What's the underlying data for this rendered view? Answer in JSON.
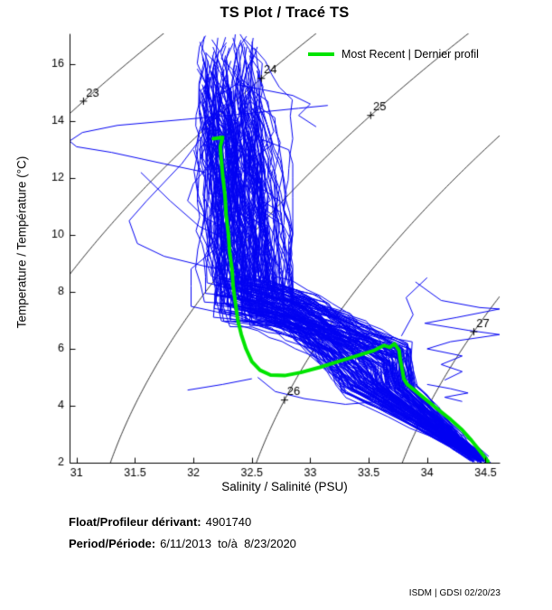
{
  "title": "TS Plot / Tracé TS",
  "legend": {
    "label": "Most Recent | Dernier profil",
    "line_color": "#00e400"
  },
  "axes": {
    "x": {
      "label": "Salinity / Salinité (PSU)"
    },
    "y": {
      "label": "Temperature / Température (°C)"
    }
  },
  "footer": {
    "float_label": "Float/Profileur dérivant:",
    "float_value": "4901740",
    "period_label": "Period/Période:",
    "period_value": "6/11/2013  to/à  8/23/2020"
  },
  "credit": "ISDM | GDSI 02/20/23",
  "chart_data": {
    "type": "line",
    "title": "TS Plot / Tracé TS",
    "xlabel": "Salinity / Salinité (PSU)",
    "ylabel": "Temperature / Température (°C)",
    "xlim": [
      30.94,
      34.62
    ],
    "ylim": [
      2,
      17.08
    ],
    "x_ticks": [
      31,
      31.5,
      32,
      32.5,
      33,
      33.5,
      34,
      34.5
    ],
    "y_ticks": [
      2,
      4,
      6,
      8,
      10,
      12,
      14,
      16
    ],
    "grid": false,
    "legend_position": "top-right-inside",
    "isopycnals": {
      "description": "sigma-t density contours (EOS-80), inline labels with + marks",
      "values": [
        23,
        24,
        25,
        26,
        27
      ],
      "label_T": {
        "23": 15.2,
        "24": 16.0,
        "25": 14.7,
        "26": 4.7,
        "27": 7.1
      },
      "color": "#000000"
    },
    "series": [
      {
        "name": "Most Recent | Dernier profil",
        "color": "#00e400",
        "line_width": 4,
        "points": [
          [
            32.17,
            13.38
          ],
          [
            32.25,
            13.43
          ],
          [
            32.23,
            13.1
          ],
          [
            32.24,
            12.6
          ],
          [
            32.25,
            12.1
          ],
          [
            32.27,
            11.4
          ],
          [
            32.28,
            10.7
          ],
          [
            32.3,
            10.0
          ],
          [
            32.31,
            9.4
          ],
          [
            32.33,
            8.8
          ],
          [
            32.34,
            8.2
          ],
          [
            32.36,
            7.6
          ],
          [
            32.38,
            7.0
          ],
          [
            32.41,
            6.5
          ],
          [
            32.45,
            6.0
          ],
          [
            32.5,
            5.55
          ],
          [
            32.57,
            5.25
          ],
          [
            32.66,
            5.08
          ],
          [
            32.78,
            5.06
          ],
          [
            32.92,
            5.17
          ],
          [
            33.08,
            5.35
          ],
          [
            33.25,
            5.57
          ],
          [
            33.42,
            5.78
          ],
          [
            33.55,
            5.95
          ],
          [
            33.63,
            6.12
          ],
          [
            33.68,
            6.05
          ],
          [
            33.72,
            6.18
          ],
          [
            33.76,
            5.95
          ],
          [
            33.77,
            5.62
          ],
          [
            33.79,
            5.2
          ],
          [
            33.8,
            4.95
          ],
          [
            33.83,
            4.75
          ],
          [
            33.9,
            4.52
          ],
          [
            34.0,
            4.18
          ],
          [
            34.1,
            3.85
          ],
          [
            34.2,
            3.52
          ],
          [
            34.3,
            3.15
          ],
          [
            34.38,
            2.78
          ],
          [
            34.45,
            2.42
          ],
          [
            34.52,
            2.05
          ]
        ]
      }
    ],
    "profiles": {
      "description": "dense bundle of historical float TS profiles 2013-2020 (approximate shape; rendered procedurally from this envelope)",
      "color": "#0000f2",
      "line_width": 1,
      "count": 170,
      "seed": 11,
      "envelope": {
        "surface_S": [
          32.05,
          32.55
        ],
        "surface_T": [
          12.8,
          17.2
        ],
        "band_S": [
          31.98,
          32.85
        ],
        "knee_T": [
          7.3,
          8.8
        ],
        "nose_S": [
          33.28,
          33.86
        ],
        "nose_T": [
          4.2,
          6.4
        ],
        "bottom_S": [
          34.38,
          34.52
        ],
        "bottom_T": [
          2.0,
          2.25
        ]
      }
    },
    "outlier_traces": [
      [
        [
          32.1,
          12.2
        ],
        [
          31.75,
          12.5
        ],
        [
          31.3,
          12.9
        ],
        [
          31.0,
          13.1
        ],
        [
          30.94,
          13.3
        ],
        [
          31.05,
          13.6
        ],
        [
          31.35,
          13.85
        ],
        [
          31.9,
          14.05
        ],
        [
          32.3,
          14.2
        ],
        [
          32.9,
          14.45
        ],
        [
          33.15,
          14.55
        ]
      ],
      [
        [
          32.3,
          14.75
        ],
        [
          32.1,
          13.6
        ],
        [
          31.9,
          12.5
        ],
        [
          31.6,
          11.2
        ],
        [
          31.45,
          10.5
        ],
        [
          31.52,
          9.7
        ],
        [
          31.75,
          9.25
        ],
        [
          32.1,
          8.9
        ],
        [
          32.3,
          8.75
        ]
      ],
      [
        [
          31.55,
          12.2
        ],
        [
          31.8,
          11.2
        ],
        [
          32.05,
          10.3
        ],
        [
          32.35,
          9.7
        ]
      ],
      [
        [
          32.15,
          12.55
        ],
        [
          32.0,
          11.8
        ],
        [
          31.95,
          11.2
        ],
        [
          32.1,
          10.6
        ],
        [
          32.3,
          10.2
        ]
      ],
      [
        [
          33.9,
          8.35
        ],
        [
          34.12,
          7.7
        ],
        [
          34.45,
          7.45
        ],
        [
          34.62,
          7.4
        ],
        [
          34.25,
          7.1
        ],
        [
          33.98,
          6.9
        ],
        [
          34.35,
          6.65
        ],
        [
          34.62,
          6.5
        ],
        [
          34.2,
          6.25
        ],
        [
          34.0,
          6.0
        ],
        [
          34.3,
          5.75
        ],
        [
          34.12,
          5.45
        ],
        [
          34.3,
          5.2
        ],
        [
          34.15,
          4.9
        ]
      ],
      [
        [
          32.55,
          5.0
        ],
        [
          32.7,
          4.5
        ],
        [
          32.95,
          4.25
        ],
        [
          33.3,
          4.05
        ],
        [
          33.6,
          4.15
        ],
        [
          33.85,
          4.35
        ]
      ],
      [
        [
          33.78,
          6.45
        ],
        [
          33.88,
          7.2
        ],
        [
          33.82,
          7.8
        ],
        [
          34.0,
          8.5
        ]
      ],
      [
        [
          31.95,
          4.55
        ],
        [
          32.25,
          4.75
        ],
        [
          32.5,
          4.95
        ]
      ],
      [
        [
          34.0,
          4.75
        ],
        [
          34.2,
          4.6
        ],
        [
          34.35,
          4.45
        ],
        [
          34.15,
          4.3
        ],
        [
          34.3,
          4.15
        ]
      ],
      [
        [
          32.35,
          15.3
        ],
        [
          32.6,
          15.1
        ],
        [
          32.85,
          14.9
        ],
        [
          33.0,
          14.6
        ],
        [
          32.9,
          14.2
        ],
        [
          33.05,
          13.8
        ]
      ],
      [
        [
          34.3,
          2.9
        ],
        [
          34.45,
          2.35
        ],
        [
          34.57,
          1.9
        ]
      ]
    ]
  }
}
